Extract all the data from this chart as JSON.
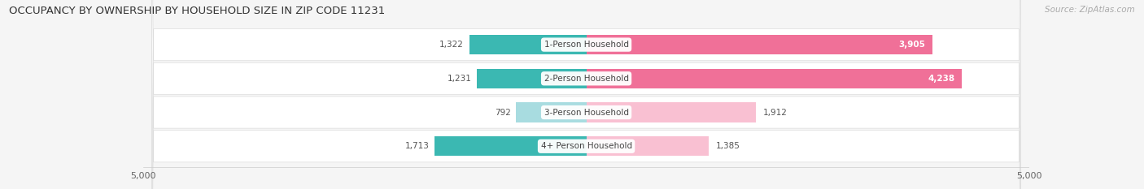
{
  "title": "OCCUPANCY BY OWNERSHIP BY HOUSEHOLD SIZE IN ZIP CODE 11231",
  "source": "Source: ZipAtlas.com",
  "categories": [
    "1-Person Household",
    "2-Person Household",
    "3-Person Household",
    "4+ Person Household"
  ],
  "owner_values": [
    1322,
    1231,
    792,
    1713
  ],
  "renter_values": [
    3905,
    4238,
    1912,
    1385
  ],
  "owner_color": "#3bb8b2",
  "renter_color": "#f07098",
  "owner_color_3per": "#a8dce0",
  "renter_color_3per": "#f9c0d2",
  "owner_color_4per": "#3bb8b2",
  "renter_color_4per": "#f9c0d2",
  "axis_max": 5000,
  "bg_color": "#f5f5f5",
  "row_bg_color": "#e8e8e8",
  "title_fontsize": 9.5,
  "label_fontsize": 7.5,
  "value_fontsize": 7.5,
  "tick_fontsize": 8,
  "legend_fontsize": 8,
  "source_fontsize": 7.5,
  "bar_colors_owner": [
    "#3bb8b2",
    "#3bb8b2",
    "#a8dce0",
    "#3bb8b2"
  ],
  "bar_colors_renter": [
    "#f07098",
    "#f07098",
    "#f9c0d2",
    "#f9c0d2"
  ]
}
